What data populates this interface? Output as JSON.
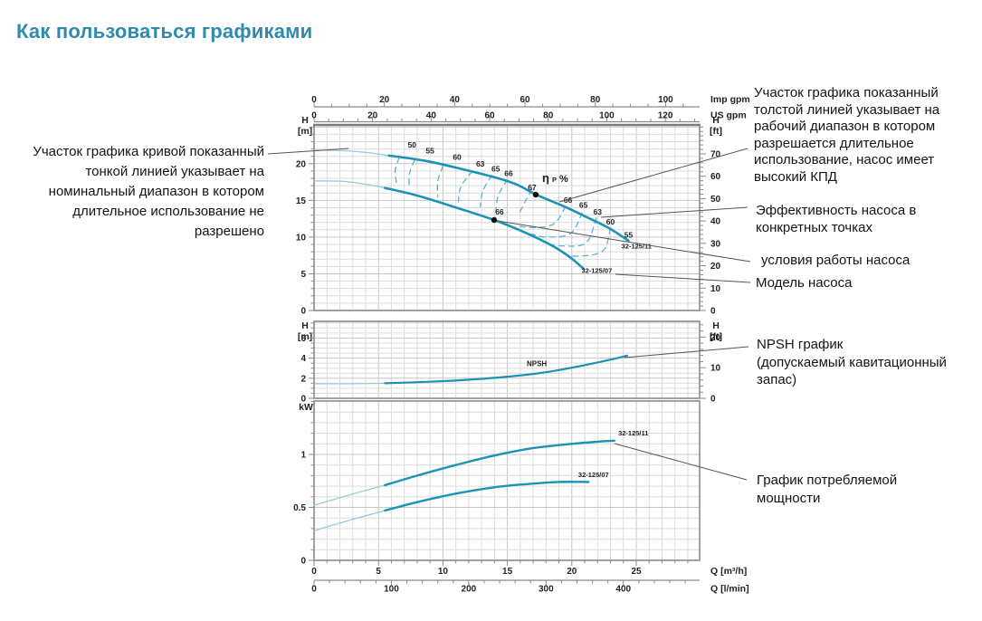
{
  "title": "Как пользоваться графиками",
  "annotations": {
    "thin_line": "Участок графика кривой показанный\nтонкой линией указывает на\nноминальный диапазон в котором\nдлительное использование не\nразрешено",
    "thick_line": "Участок графика показанный\nтолстой линией указывает на\nрабочий диапазон в котором\nразрешается длительное\nиспользование, насос имеет\nвысокий КПД",
    "efficiency": "Эффективность насоса в\nконкретных точках",
    "conditions": "условия работы насоса",
    "model": "Модель насоса",
    "npsh": "NPSH график\n(допускаемый кавитационный запас)",
    "power": "График потребляемой\nмощности"
  },
  "colors": {
    "title": "#2e8bad",
    "curve": "#1b93b3",
    "curve_thin": "#8fcadb",
    "contour": "#5fb3ca",
    "grid": "#dcdcdc",
    "grid_major": "#c6c6c6",
    "border": "#8a8a8a",
    "leader": "#555555",
    "text": "#222222"
  },
  "flow_axes": {
    "top": [
      {
        "unit": "Imp gpm",
        "m3h_per_unit": 0.27276,
        "labels": [
          0,
          20,
          40,
          60,
          80,
          100
        ],
        "minor": 5
      },
      {
        "unit": "US gpm",
        "m3h_per_unit": 0.22712,
        "labels": [
          0,
          20,
          40,
          60,
          80,
          100,
          120
        ],
        "minor": 5
      }
    ],
    "bottom": [
      {
        "unit": "Q [m³/h]",
        "m3h_per_unit": 1,
        "labels": [
          0,
          5,
          10,
          15,
          20,
          25
        ],
        "minor": 1
      },
      {
        "unit": "Q [l/min]",
        "m3h_per_unit": 0.06,
        "labels": [
          0,
          100,
          200,
          300,
          400
        ],
        "minor": 20
      }
    ]
  },
  "chart_data": [
    {
      "type": "line",
      "id": "head",
      "xlabel": "Q [m³/h]",
      "ylabel": "H [m]",
      "xlim": [
        0,
        30
      ],
      "ylim": [
        0,
        25.3
      ],
      "y_left": {
        "unit_lines": [
          "H",
          "[m]"
        ],
        "labels": [
          0,
          5,
          10,
          15,
          20
        ],
        "minor": 1
      },
      "y_right": {
        "unit_lines": [
          "H",
          "[ft]"
        ],
        "labels": [
          0,
          10,
          20,
          30,
          40,
          50,
          60,
          70
        ],
        "minor": 2
      },
      "series": [
        {
          "name": "32-125/11",
          "thin": [
            [
              0,
              21.85
            ],
            [
              2.5,
              21.75
            ],
            [
              4.2,
              21.5
            ],
            [
              5.8,
              21.1
            ]
          ],
          "thick": [
            [
              5.8,
              21.1
            ],
            [
              8.6,
              20.4
            ],
            [
              11.4,
              19.3
            ],
            [
              14.3,
              18.0
            ],
            [
              15.8,
              17.1
            ],
            [
              17.2,
              15.8
            ],
            [
              19.5,
              14.1
            ],
            [
              21.3,
              12.6
            ],
            [
              22.9,
              11.2
            ],
            [
              24.4,
              9.5
            ]
          ]
        },
        {
          "name": "32-125/07",
          "thin": [
            [
              0,
              17.65
            ],
            [
              2.2,
              17.6
            ],
            [
              4,
              17.2
            ],
            [
              5.5,
              16.7
            ]
          ],
          "thick": [
            [
              5.5,
              16.7
            ],
            [
              7.9,
              15.7
            ],
            [
              10.7,
              14.2
            ],
            [
              13.97,
              12.33
            ],
            [
              16.4,
              10.6
            ],
            [
              18.5,
              8.8
            ],
            [
              19.9,
              7.2
            ],
            [
              20.9,
              5.7
            ]
          ]
        }
      ],
      "efficiency_labels": [
        {
          "v": "50",
          "q": 7.6,
          "h": 22.2
        },
        {
          "v": "55",
          "q": 9.0,
          "h": 21.4
        },
        {
          "v": "60",
          "q": 11.1,
          "h": 20.5
        },
        {
          "v": "63",
          "q": 12.9,
          "h": 19.6
        },
        {
          "v": "65",
          "q": 14.1,
          "h": 18.9
        },
        {
          "v": "66",
          "q": 15.1,
          "h": 18.3
        },
        {
          "v": "66",
          "q": 19.7,
          "h": 14.7
        },
        {
          "v": "65",
          "q": 20.9,
          "h": 14.0
        },
        {
          "v": "63",
          "q": 22.0,
          "h": 13.1
        },
        {
          "v": "60",
          "q": 23.0,
          "h": 11.7
        },
        {
          "v": "55",
          "q": 24.4,
          "h": 9.9
        }
      ],
      "eta_label": {
        "text": "η P %",
        "q": 17.7,
        "h": 17.5
      },
      "duty_points": [
        {
          "label": "67",
          "q": 17.2,
          "h": 15.78,
          "lx": -4,
          "ly": -5
        },
        {
          "label": "66",
          "q": 13.97,
          "h": 12.33,
          "lx": 6,
          "ly": -6
        }
      ],
      "model_labels": [
        {
          "text": "32-125/11",
          "q": 23.85,
          "h": 8.45
        },
        {
          "text": "32-125/07",
          "q": 20.75,
          "h": 5.1
        }
      ],
      "contours": [
        [
          [
            6.6,
            20.8
          ],
          [
            6.3,
            19.1
          ],
          [
            6.4,
            17.3
          ]
        ],
        [
          [
            7.8,
            20.5
          ],
          [
            7.4,
            18.6
          ],
          [
            7.4,
            16.6
          ]
        ],
        [
          [
            10.0,
            19.7
          ],
          [
            9.6,
            17.6
          ],
          [
            9.6,
            15.5
          ]
        ],
        [
          [
            12.3,
            19.0
          ],
          [
            11.4,
            16.9
          ],
          [
            11.2,
            14.8
          ]
        ],
        [
          [
            13.8,
            18.4
          ],
          [
            13.1,
            16.3
          ],
          [
            12.9,
            14.1
          ]
        ],
        [
          [
            15.0,
            17.8
          ],
          [
            14.3,
            15.7
          ],
          [
            14.1,
            13.4
          ]
        ],
        [
          [
            16.9,
            16.5
          ],
          [
            16.4,
            14.9
          ],
          [
            15.9,
            13.2
          ]
        ],
        [
          [
            19.5,
            14.1
          ],
          [
            18.6,
            11.8
          ],
          [
            17.1,
            11.3
          ],
          [
            15.8,
            11.5
          ]
        ],
        [
          [
            20.8,
            13.3
          ],
          [
            19.9,
            10.5
          ],
          [
            18.1,
            10.0
          ],
          [
            16.9,
            10.4
          ]
        ],
        [
          [
            21.9,
            12.6
          ],
          [
            21.1,
            9.2
          ],
          [
            19.2,
            8.8
          ],
          [
            17.9,
            9.2
          ]
        ],
        [
          [
            23.0,
            11.2
          ],
          [
            22.4,
            8.1
          ],
          [
            20.4,
            7.4
          ],
          [
            19.3,
            7.8
          ]
        ]
      ]
    },
    {
      "type": "line",
      "id": "npsh",
      "xlabel": "Q [m³/h]",
      "ylabel": "H [m]",
      "ylim": [
        0,
        7.65
      ],
      "y_left": {
        "unit_lines": [
          "H",
          "[m]"
        ],
        "labels": [
          0,
          2,
          4,
          6
        ],
        "minor": 0.5
      },
      "y_right": {
        "unit_lines": [
          "H",
          "[ft]"
        ],
        "labels": [
          0,
          10,
          20
        ],
        "minor": 2
      },
      "series": [
        {
          "name": "NPSH",
          "thin": [
            [
              0,
              1.45
            ],
            [
              3,
              1.45
            ],
            [
              5.5,
              1.5
            ]
          ],
          "thick": [
            [
              5.5,
              1.5
            ],
            [
              9,
              1.65
            ],
            [
              12,
              1.85
            ],
            [
              15,
              2.15
            ],
            [
              18,
              2.6
            ],
            [
              21,
              3.3
            ],
            [
              23,
              3.85
            ],
            [
              24.3,
              4.25
            ]
          ]
        }
      ],
      "curve_label": {
        "text": "NPSH",
        "q": 16.5,
        "h": 3.2
      }
    },
    {
      "type": "line",
      "id": "power",
      "xlabel": "Q [m³/h]",
      "ylabel": "kW",
      "ylim": [
        0,
        1.5
      ],
      "y_left": {
        "unit_lines": [
          "kW"
        ],
        "labels": [
          0,
          0.5,
          1
        ],
        "minor": 0.1
      },
      "series": [
        {
          "name": "32-125/11",
          "thin": [
            [
              0,
              0.52
            ],
            [
              2.8,
              0.62
            ],
            [
              5.5,
              0.71
            ]
          ],
          "thick": [
            [
              5.5,
              0.71
            ],
            [
              8,
              0.8
            ],
            [
              11,
              0.9
            ],
            [
              14,
              0.99
            ],
            [
              17,
              1.06
            ],
            [
              20,
              1.1
            ],
            [
              22,
              1.12
            ],
            [
              23.3,
              1.13
            ]
          ],
          "label_at": {
            "q": 23.6,
            "v": 1.18
          }
        },
        {
          "name": "32-125/07",
          "thin": [
            [
              0,
              0.28
            ],
            [
              2.8,
              0.38
            ],
            [
              5.5,
              0.47
            ]
          ],
          "thick": [
            [
              5.5,
              0.47
            ],
            [
              8,
              0.55
            ],
            [
              11,
              0.63
            ],
            [
              14,
              0.69
            ],
            [
              16.5,
              0.72
            ],
            [
              19,
              0.74
            ],
            [
              21.3,
              0.74
            ]
          ],
          "label_at": {
            "q": 20.5,
            "v": 0.785
          }
        }
      ]
    }
  ]
}
